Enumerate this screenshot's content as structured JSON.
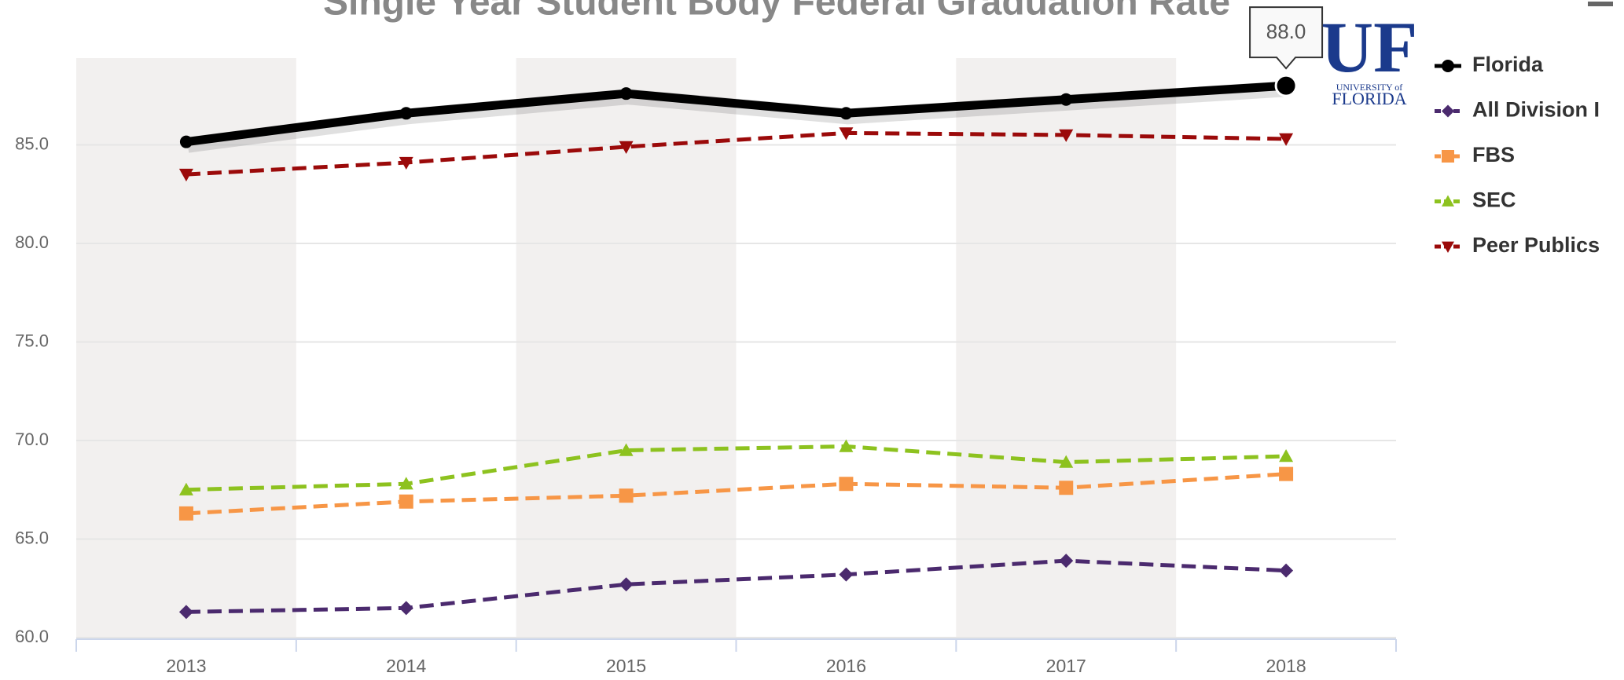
{
  "chart_data": {
    "type": "line",
    "title": "Single Year Student Body Federal Graduation Rate",
    "categories": [
      "2013",
      "2014",
      "2015",
      "2016",
      "2017",
      "2018"
    ],
    "series": [
      {
        "name": "Florida",
        "color": "#000000",
        "marker": "circle",
        "dashed": false,
        "values": [
          85.15,
          86.6,
          87.6,
          86.6,
          87.3,
          88.0
        ]
      },
      {
        "name": "All Division I",
        "color": "#4b2a6e",
        "marker": "diamond",
        "dashed": true,
        "values": [
          61.3,
          61.5,
          62.7,
          63.2,
          63.9,
          63.4
        ]
      },
      {
        "name": "FBS",
        "color": "#f79646",
        "marker": "square",
        "dashed": true,
        "values": [
          66.3,
          66.9,
          67.2,
          67.8,
          67.6,
          68.3
        ]
      },
      {
        "name": "SEC",
        "color": "#8dc21f",
        "marker": "triangle",
        "dashed": true,
        "values": [
          67.5,
          67.8,
          69.5,
          69.7,
          68.9,
          69.2
        ]
      },
      {
        "name": "Peer Publics",
        "color": "#9b0a0a",
        "marker": "triangle-down",
        "dashed": true,
        "values": [
          83.5,
          84.1,
          84.9,
          85.6,
          85.5,
          85.3
        ]
      }
    ],
    "ylim": [
      60,
      89.4
    ],
    "yticks": [
      {
        "value": 60,
        "label": "60.0"
      },
      {
        "value": 65,
        "label": "65.0"
      },
      {
        "value": 70,
        "label": "70.0"
      },
      {
        "value": 75,
        "label": "75.0"
      },
      {
        "value": 80,
        "label": "80.0"
      },
      {
        "value": 85,
        "label": "85.0"
      }
    ],
    "grid": true,
    "legend": "right",
    "tooltip": "88.0",
    "logo": {
      "initials": "UF",
      "line1": "UNIVERSITY of",
      "line2": "FLORIDA"
    }
  }
}
